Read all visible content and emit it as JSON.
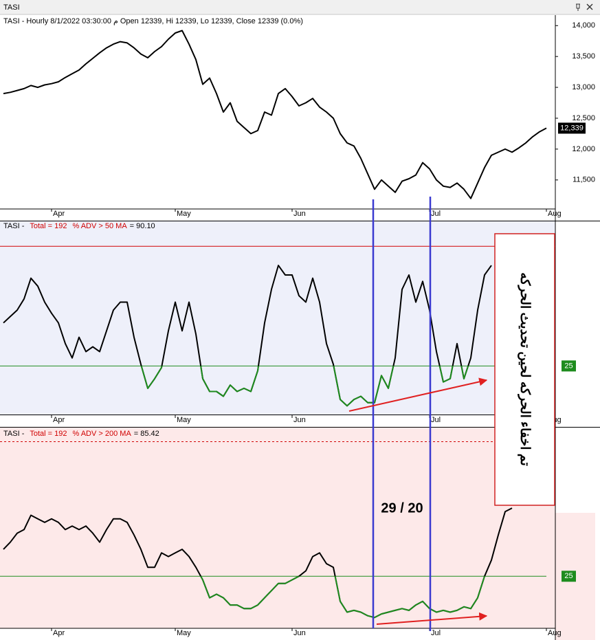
{
  "window": {
    "title": "TASI"
  },
  "annotations": {
    "ratio": "29 / 20",
    "note": "تم اخفاء الحركه لحين تحديث الحركه"
  },
  "chart_data": [
    {
      "type": "line",
      "title": "TASI - Hourly 8/1/2022 03:30:00 م Open 12339, Hi 12339, Lo 12339, Close 12339 (0.0%)",
      "categories": [
        null,
        null,
        null,
        null,
        null,
        null,
        null,
        "Apr",
        null,
        null,
        null,
        null,
        null,
        null,
        null,
        null,
        null,
        null,
        null,
        null,
        null,
        null,
        null,
        null,
        null,
        "May",
        null,
        null,
        null,
        null,
        null,
        null,
        null,
        null,
        null,
        null,
        null,
        null,
        null,
        null,
        null,
        null,
        "Jun",
        null,
        null,
        null,
        null,
        null,
        null,
        null,
        null,
        null,
        null,
        null,
        null,
        null,
        null,
        null,
        null,
        null,
        null,
        null,
        "Jul",
        null,
        null,
        null,
        null,
        null,
        null,
        null,
        null,
        null,
        null,
        null,
        null,
        null,
        null,
        null,
        null,
        "Aug"
      ],
      "color": "#000000",
      "values": [
        12900,
        12920,
        12950,
        12980,
        13030,
        13000,
        13040,
        13060,
        13090,
        13160,
        13220,
        13280,
        13380,
        13470,
        13560,
        13640,
        13700,
        13740,
        13720,
        13640,
        13540,
        13480,
        13580,
        13660,
        13780,
        13880,
        13920,
        13700,
        13450,
        13050,
        13150,
        12900,
        12600,
        12750,
        12450,
        12350,
        12250,
        12300,
        12600,
        12550,
        12900,
        12980,
        12850,
        12700,
        12750,
        12820,
        12680,
        12600,
        12500,
        12250,
        12100,
        12050,
        11850,
        11600,
        11350,
        11500,
        11400,
        11300,
        11480,
        11520,
        11580,
        11780,
        11680,
        11500,
        11400,
        11380,
        11450,
        11350,
        11200,
        11450,
        11700,
        11900,
        11950,
        12000,
        11950,
        12020,
        12100,
        12200,
        12280,
        12339
      ],
      "last_value_label": "12,339",
      "ylim": [
        11030,
        14170
      ],
      "yticks": [
        {
          "value": 11500,
          "label": "11,500"
        },
        {
          "value": 12000,
          "label": "12,000"
        },
        {
          "value": 12500,
          "label": "12,500"
        },
        {
          "value": 13000,
          "label": "13,000"
        },
        {
          "value": 13500,
          "label": "13,500"
        },
        {
          "value": 14000,
          "label": "14,000"
        }
      ]
    },
    {
      "type": "line",
      "header": {
        "name": "TASI -",
        "total": "Total =  192",
        "indicator": "% ADV > 50 MA",
        "reading": "= 90.10"
      },
      "categories": [
        null,
        null,
        null,
        null,
        null,
        null,
        null,
        "Apr",
        null,
        null,
        null,
        null,
        null,
        null,
        null,
        null,
        null,
        null,
        null,
        null,
        null,
        null,
        null,
        null,
        null,
        "May",
        null,
        null,
        null,
        null,
        null,
        null,
        null,
        null,
        null,
        null,
        null,
        null,
        null,
        null,
        null,
        null,
        "Jun",
        null,
        null,
        null,
        null,
        null,
        null,
        null,
        null,
        null,
        null,
        null,
        null,
        null,
        null,
        null,
        null,
        null,
        null,
        null,
        "Jul",
        null,
        null,
        null,
        null,
        null,
        null,
        null,
        null,
        null,
        null,
        null,
        null,
        null,
        null,
        null,
        null,
        "Aug"
      ],
      "color": "#000000",
      "below_color": "#1e8c1e",
      "values": [
        52,
        56,
        60,
        67,
        80,
        75,
        65,
        58,
        52,
        39,
        30,
        43,
        34,
        37,
        34,
        47,
        60,
        65,
        65,
        43,
        26,
        11,
        17,
        24,
        47,
        65,
        47,
        65,
        45,
        17,
        9,
        9,
        6,
        13,
        9,
        11,
        9,
        22,
        52,
        73,
        88,
        82,
        82,
        69,
        65,
        80,
        65,
        39,
        26,
        4,
        0,
        4,
        6,
        2,
        2,
        19,
        11,
        30,
        73,
        82,
        65,
        78,
        60,
        34,
        15,
        17,
        39,
        17,
        30,
        60,
        82,
        88,
        null,
        null,
        null,
        null,
        null,
        null,
        null,
        null
      ],
      "ylim": [
        -5,
        110
      ],
      "yticks": [
        25
      ],
      "ref_line": {
        "value": 100,
        "color": "#d00000",
        "dashed": false
      },
      "background": "#eef0fa"
    },
    {
      "type": "line",
      "header": {
        "name": "TASI -",
        "total": "Total =  192",
        "indicator": "% ADV > 200 MA",
        "reading": "= 85.42"
      },
      "categories": [
        null,
        null,
        null,
        null,
        null,
        null,
        null,
        "Apr",
        null,
        null,
        null,
        null,
        null,
        null,
        null,
        null,
        null,
        null,
        null,
        null,
        null,
        null,
        null,
        null,
        null,
        "May",
        null,
        null,
        null,
        null,
        null,
        null,
        null,
        null,
        null,
        null,
        null,
        null,
        null,
        null,
        null,
        null,
        "Jun",
        null,
        null,
        null,
        null,
        null,
        null,
        null,
        null,
        null,
        null,
        null,
        null,
        null,
        null,
        null,
        null,
        null,
        null,
        null,
        "Jul",
        null,
        null,
        null,
        null,
        null,
        null,
        null,
        null,
        null,
        null,
        null,
        null,
        null,
        null,
        null,
        null,
        "Aug"
      ],
      "color": "#000000",
      "below_color": "#1e8c1e",
      "values": [
        40,
        44,
        49,
        51,
        59,
        57,
        55,
        57,
        55,
        51,
        53,
        51,
        53,
        49,
        44,
        51,
        57,
        57,
        55,
        48,
        40,
        30,
        30,
        38,
        36,
        38,
        40,
        36,
        30,
        23,
        13,
        15,
        13,
        9,
        9,
        7,
        7,
        9,
        13,
        17,
        21,
        21,
        23,
        25,
        28,
        36,
        38,
        32,
        30,
        11,
        5,
        6,
        5,
        3,
        2,
        4,
        5,
        6,
        7,
        6,
        9,
        11,
        7,
        5,
        6,
        5,
        6,
        8,
        7,
        13,
        25,
        34,
        48,
        61,
        63,
        null,
        null,
        null,
        null,
        null
      ],
      "ylim": [
        -4,
        104
      ],
      "yticks": [
        25
      ],
      "ref_line": {
        "value": 100,
        "color": "#d00000",
        "dashed": true
      },
      "background": "#fde9e9"
    }
  ]
}
